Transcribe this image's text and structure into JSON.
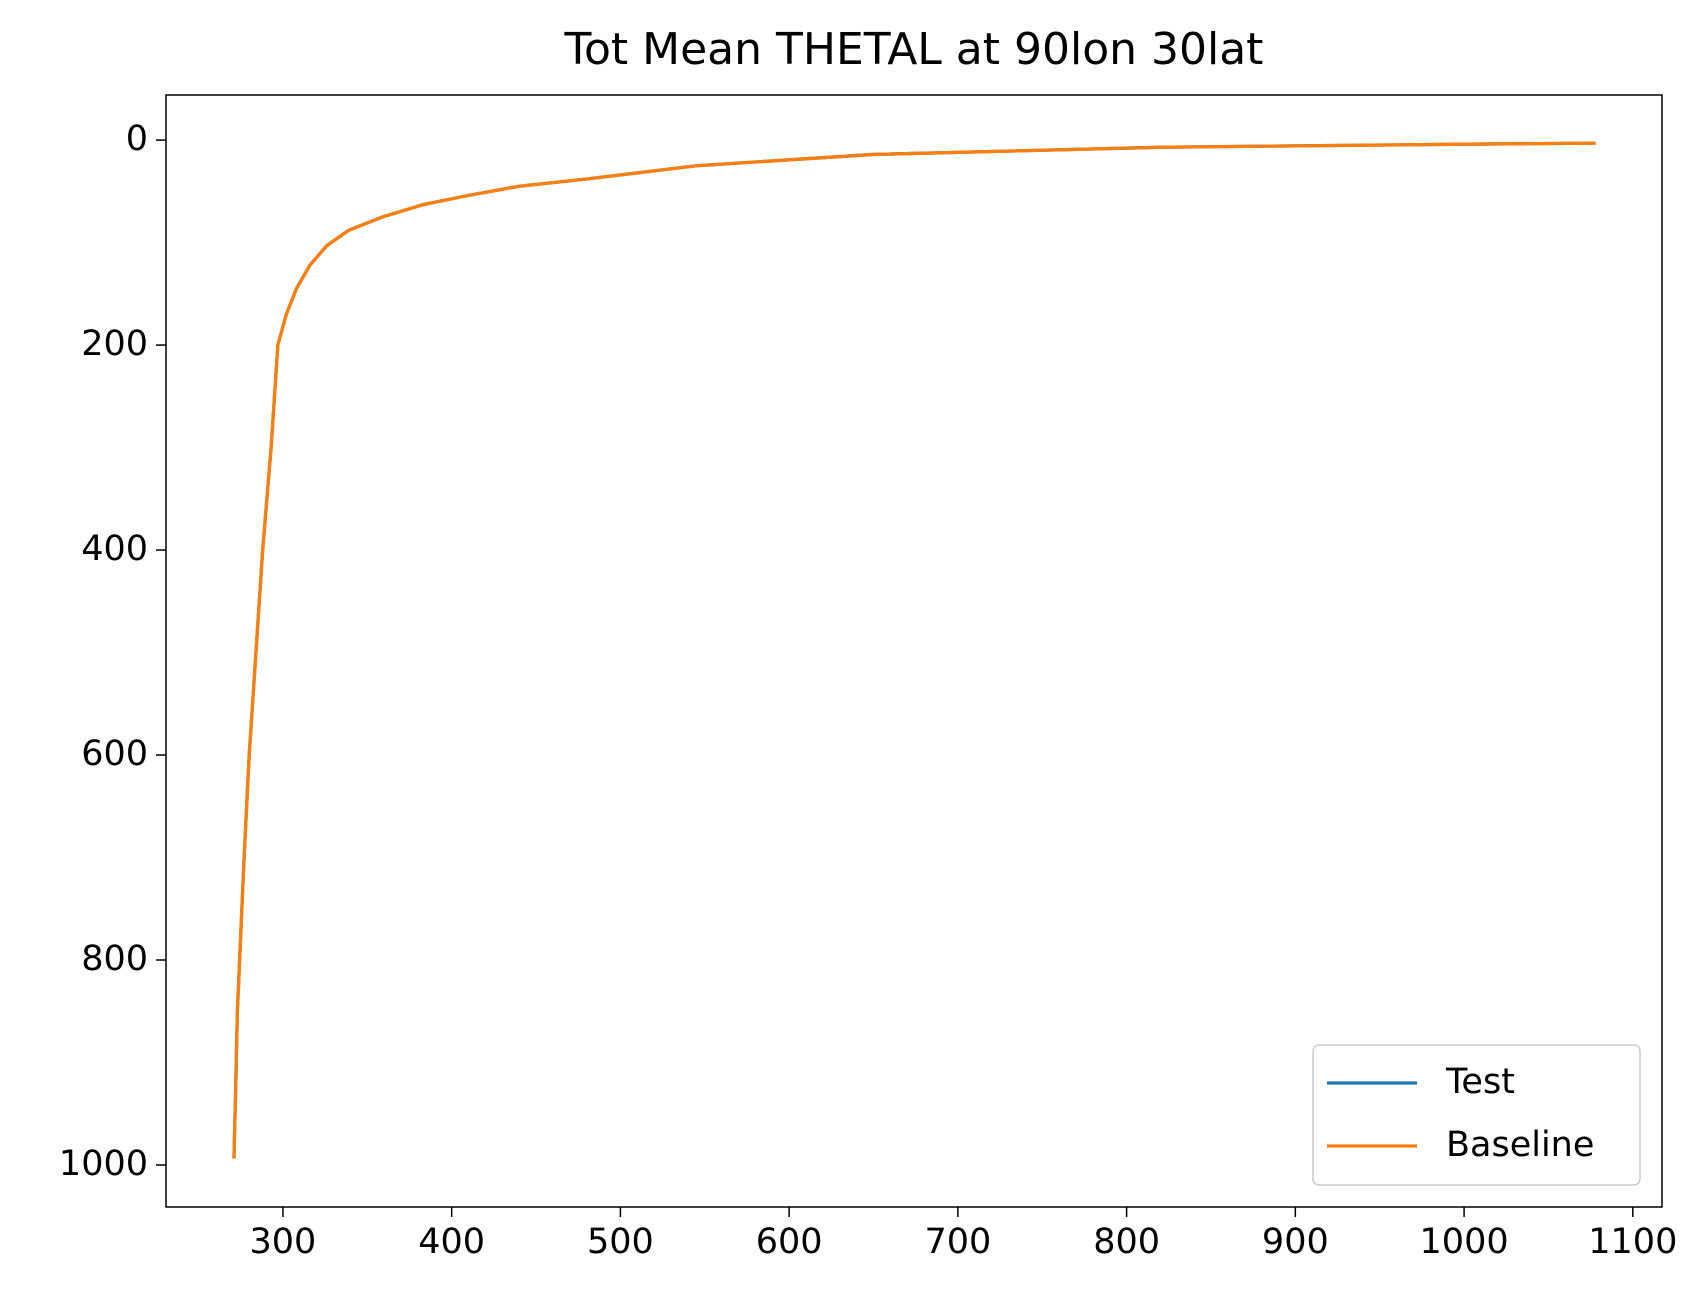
{
  "chart_data": {
    "type": "line",
    "title": "Tot Mean THETAL at 90lon 30lat",
    "x": [
      271,
      272,
      273,
      275,
      277,
      280,
      284,
      288,
      293,
      297,
      302,
      308,
      316,
      326,
      339,
      359,
      383,
      410,
      440,
      480,
      545,
      650,
      820,
      1000,
      1077
    ],
    "series": [
      {
        "name": "Test",
        "color": "#1f77b4",
        "values": [
          992,
          925,
          850,
          775,
          700,
          600,
          500,
          400,
          300,
          200,
          170,
          145,
          122,
          103,
          88,
          75,
          63,
          54,
          45,
          38,
          25,
          14,
          7,
          4,
          3
        ]
      },
      {
        "name": "Baseline",
        "color": "#ff7f0e",
        "values": [
          992,
          925,
          850,
          775,
          700,
          600,
          500,
          400,
          300,
          200,
          170,
          145,
          122,
          103,
          88,
          75,
          63,
          54,
          45,
          38,
          25,
          14,
          7,
          4,
          3
        ]
      }
    ],
    "xlim": [
      230.7,
      1117.3
    ],
    "xticks": [
      300,
      400,
      500,
      600,
      700,
      800,
      900,
      1000,
      1100
    ],
    "ylim": [
      -44,
      1041
    ],
    "yticks": [
      0,
      200,
      400,
      600,
      800,
      1000
    ],
    "y_inverted": true,
    "grid": false,
    "legend": "lower right"
  }
}
